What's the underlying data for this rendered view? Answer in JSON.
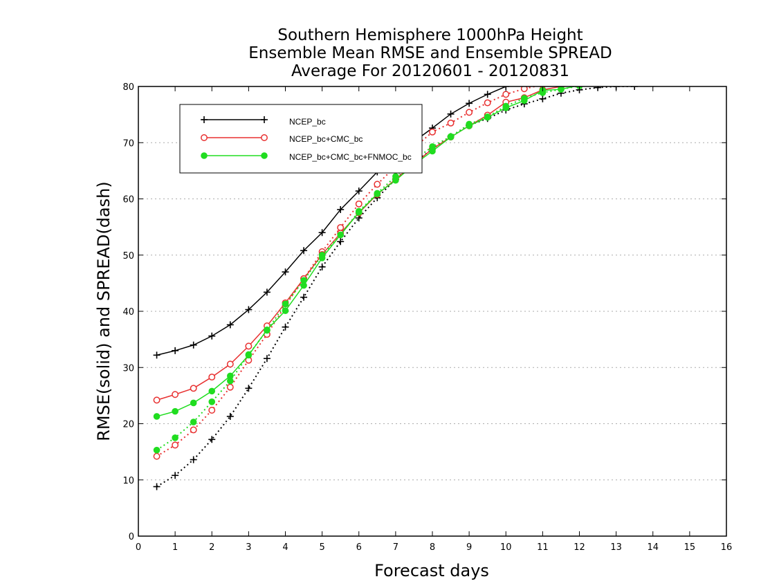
{
  "chart_data": {
    "type": "line",
    "title": [
      "Southern Hemisphere 1000hPa Height",
      "Ensemble Mean RMSE and Ensemble SPREAD",
      "Average For 20120601 - 20120831"
    ],
    "xlabel": "Forecast days",
    "ylabel": "RMSE(solid) and SPREAD(dash)",
    "xlim": [
      0,
      16
    ],
    "ylim": [
      0,
      80
    ],
    "x_ticks": [
      "0",
      "1",
      "2",
      "3",
      "4",
      "5",
      "6",
      "7",
      "8",
      "9",
      "10",
      "11",
      "12",
      "13",
      "14",
      "15",
      "16"
    ],
    "y_ticks": [
      "0",
      "10",
      "20",
      "30",
      "40",
      "50",
      "60",
      "70",
      "80"
    ],
    "grid": "horizontal dotted",
    "legend_position": "top-left",
    "x": [
      0.5,
      1,
      1.5,
      2,
      2.5,
      3,
      3.5,
      4,
      4.5,
      5,
      5.5,
      6,
      6.5,
      7,
      7.5,
      8,
      8.5,
      9,
      9.5,
      10,
      10.5,
      11,
      11.5,
      12,
      12.5,
      13,
      13.5,
      14,
      14.5,
      15,
      15.5,
      16
    ],
    "series": [
      {
        "name": "NCEP_bc",
        "color": "#000000",
        "marker": "plus",
        "rmse": [
          32.2,
          33.0,
          34.0,
          35.6,
          37.6,
          40.3,
          43.4,
          47.0,
          50.8,
          54.0,
          58.1,
          61.4,
          64.8,
          67.6,
          70.2,
          72.6,
          75.1,
          77.0,
          78.6,
          80.0,
          81.3,
          82.3,
          83.2,
          84.0,
          84.8,
          85.5,
          86.0,
          86.5,
          87.0,
          87.4,
          87.7,
          88.0
        ],
        "spread": [
          8.8,
          10.8,
          13.6,
          17.2,
          21.3,
          26.3,
          31.6,
          37.2,
          42.5,
          47.9,
          52.4,
          56.6,
          60.2,
          63.5,
          66.4,
          68.9,
          71.1,
          73.1,
          74.3,
          75.8,
          76.9,
          77.8,
          78.8,
          79.4,
          79.8,
          80.0,
          80.0,
          80.5,
          80.8,
          81.0,
          81.2,
          81.4
        ]
      },
      {
        "name": "NCEP_bc+CMC_bc",
        "color": "#e83030",
        "marker": "open-circle",
        "rmse": [
          24.2,
          25.2,
          26.3,
          28.3,
          30.6,
          33.8,
          37.4,
          41.5,
          45.8,
          50.1,
          53.9,
          57.5,
          60.8,
          63.5,
          66.2,
          68.9,
          71.0,
          73.0,
          74.9,
          77.2,
          78.0,
          79.4,
          80.0,
          80.8,
          81.5,
          82.0,
          82.5,
          83.0,
          83.3,
          83.6,
          83.9,
          84.2
        ],
        "spread": [
          14.2,
          16.2,
          18.9,
          22.4,
          26.5,
          31.3,
          35.9,
          41.0,
          45.8,
          50.6,
          54.9,
          59.1,
          62.6,
          65.8,
          69.1,
          71.9,
          73.5,
          75.4,
          77.1,
          78.6,
          79.6,
          80.3,
          81.0,
          81.6,
          82.1,
          82.5,
          82.9,
          83.2,
          83.5,
          83.8,
          84.0,
          84.2
        ]
      },
      {
        "name": "NCEP_bc+CMC_bc+FNMOC_bc",
        "color": "#20dd20",
        "marker": "filled-circle",
        "rmse": [
          21.3,
          22.2,
          23.7,
          25.8,
          28.5,
          32.2,
          36.7,
          40.1,
          44.6,
          49.5,
          53.6,
          57.6,
          60.9,
          63.3,
          66.1,
          68.5,
          71.0,
          73.0,
          74.5,
          76.2,
          77.5,
          79.3,
          79.5,
          80.2,
          80.8,
          81.4,
          81.8,
          82.2,
          82.6,
          82.9,
          83.1,
          83.3
        ],
        "spread": [
          15.3,
          17.5,
          20.3,
          23.9,
          27.6,
          32.3,
          36.6,
          41.3,
          45.5,
          50.0,
          53.6,
          57.8,
          61.0,
          64.0,
          66.9,
          69.3,
          71.1,
          73.3,
          74.6,
          76.5,
          77.9,
          78.9,
          79.5,
          80.1,
          80.7,
          81.2,
          81.6,
          82.0,
          82.3,
          82.6,
          82.9,
          83.1
        ]
      }
    ]
  }
}
